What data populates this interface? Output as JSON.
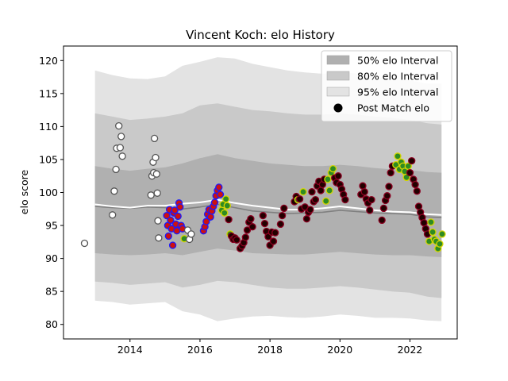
{
  "chart_data": {
    "type": "scatter",
    "title": "Vincent Koch: elo History",
    "xlabel": "",
    "ylabel": "elo score",
    "xlim": [
      2012.1,
      2023.35
    ],
    "ylim": [
      77.8,
      122.2
    ],
    "xticks": [
      2014,
      2016,
      2018,
      2020,
      2022
    ],
    "xtick_labels": [
      "2014",
      "2016",
      "2018",
      "2020",
      "2022"
    ],
    "yticks": [
      80,
      85,
      90,
      95,
      100,
      105,
      110,
      115,
      120
    ],
    "ytick_labels": [
      "80",
      "85",
      "90",
      "95",
      "100",
      "105",
      "110",
      "115",
      "120"
    ],
    "legend_position": "top-right",
    "legend": [
      {
        "label": "50% elo Interval",
        "color": "#b0b0b0"
      },
      {
        "label": "80% elo Interval",
        "color": "#c9c9c9"
      },
      {
        "label": "95% elo Interval",
        "color": "#e3e3e3"
      },
      {
        "label": "Post Match elo",
        "color": "#000000"
      }
    ],
    "bands": {
      "x": [
        2013.0,
        2013.5,
        2014.0,
        2014.5,
        2015.0,
        2015.5,
        2016.0,
        2016.5,
        2017.0,
        2017.5,
        2018.0,
        2018.5,
        2019.0,
        2019.5,
        2020.0,
        2020.5,
        2021.0,
        2021.5,
        2022.0,
        2022.5,
        2022.9
      ],
      "p95_high": [
        118.5,
        117.8,
        117.3,
        117.2,
        117.6,
        119.2,
        119.8,
        120.5,
        120.3,
        119.5,
        119.0,
        118.5,
        118.2,
        118.0,
        118.3,
        118.0,
        117.5,
        117.2,
        117.0,
        116.5,
        116.5
      ],
      "p80_high": [
        112.0,
        111.5,
        111.0,
        111.2,
        111.5,
        112.0,
        113.2,
        113.5,
        113.0,
        112.5,
        112.3,
        112.0,
        111.8,
        111.8,
        112.0,
        111.8,
        111.5,
        111.3,
        111.0,
        110.5,
        110.3
      ],
      "p50_high": [
        104.0,
        103.6,
        103.3,
        103.6,
        103.8,
        104.4,
        105.2,
        105.8,
        105.2,
        104.8,
        104.4,
        104.2,
        104.0,
        104.0,
        104.2,
        104.0,
        103.7,
        103.5,
        103.4,
        103.1,
        103.0
      ],
      "p50_low": [
        90.8,
        90.6,
        90.5,
        90.6,
        90.8,
        90.5,
        91.0,
        91.5,
        91.2,
        90.8,
        90.7,
        90.6,
        90.6,
        90.8,
        91.0,
        90.8,
        90.6,
        90.5,
        90.5,
        90.3,
        90.2
      ],
      "p80_low": [
        86.5,
        86.3,
        86.0,
        86.2,
        86.4,
        85.6,
        86.0,
        86.6,
        86.4,
        86.0,
        85.6,
        85.4,
        85.4,
        85.6,
        85.8,
        85.6,
        85.3,
        85.0,
        84.8,
        84.2,
        84.0
      ],
      "p95_low": [
        83.6,
        83.4,
        83.0,
        83.2,
        83.4,
        82.0,
        81.5,
        80.5,
        80.9,
        81.2,
        81.3,
        81.1,
        81.0,
        81.2,
        81.5,
        81.3,
        81.0,
        81.0,
        80.9,
        80.6,
        80.5
      ]
    },
    "median_line": {
      "x": [
        2013.0,
        2013.5,
        2014.0,
        2014.5,
        2015.0,
        2015.5,
        2016.0,
        2016.5,
        2017.0,
        2017.5,
        2018.0,
        2018.5,
        2019.0,
        2019.5,
        2020.0,
        2020.5,
        2021.0,
        2021.5,
        2022.0,
        2022.5,
        2022.9
      ],
      "y": [
        97.9,
        97.7,
        97.6,
        97.8,
        97.7,
        97.5,
        97.8,
        98.2,
        97.7,
        97.2,
        97.0,
        96.8,
        96.9,
        97.0,
        97.3,
        97.1,
        96.9,
        96.8,
        96.7,
        96.3,
        96.2
      ]
    },
    "mean_line": {
      "x": [
        2013.0,
        2013.5,
        2014.0,
        2014.5,
        2015.0,
        2015.5,
        2016.0,
        2016.5,
        2017.0,
        2017.5,
        2018.0,
        2018.5,
        2019.0,
        2019.5,
        2020.0,
        2020.5,
        2021.0,
        2021.5,
        2022.0,
        2022.5,
        2022.9
      ],
      "y": [
        98.2,
        97.9,
        97.7,
        98.0,
        98.0,
        98.3,
        98.5,
        98.9,
        98.4,
        98.0,
        97.7,
        97.4,
        97.4,
        97.6,
        97.9,
        97.6,
        97.3,
        97.1,
        97.0,
        96.7,
        96.6
      ]
    },
    "point_styles": {
      "white": {
        "fill": "#ffffff",
        "stroke": "#555555"
      },
      "blue": {
        "fill": "#cc1111",
        "stroke": "#1a1aff"
      },
      "green": {
        "fill": "#2e8b22",
        "stroke": "#d6d600"
      },
      "black": {
        "fill": "#220000",
        "stroke": "#8a0020"
      }
    },
    "points": [
      {
        "x": 2012.7,
        "y": 92.3,
        "style": "white"
      },
      {
        "x": 2013.5,
        "y": 96.6,
        "style": "white"
      },
      {
        "x": 2013.55,
        "y": 100.2,
        "style": "white"
      },
      {
        "x": 2013.6,
        "y": 103.5,
        "style": "white"
      },
      {
        "x": 2013.62,
        "y": 106.7,
        "style": "white"
      },
      {
        "x": 2013.68,
        "y": 110.1,
        "style": "white"
      },
      {
        "x": 2013.72,
        "y": 106.8,
        "style": "white"
      },
      {
        "x": 2013.75,
        "y": 108.5,
        "style": "white"
      },
      {
        "x": 2013.78,
        "y": 105.5,
        "style": "white"
      },
      {
        "x": 2014.6,
        "y": 99.6,
        "style": "white"
      },
      {
        "x": 2014.63,
        "y": 102.5,
        "style": "white"
      },
      {
        "x": 2014.66,
        "y": 104.6,
        "style": "white"
      },
      {
        "x": 2014.68,
        "y": 103.0,
        "style": "white"
      },
      {
        "x": 2014.7,
        "y": 108.2,
        "style": "white"
      },
      {
        "x": 2014.73,
        "y": 105.3,
        "style": "white"
      },
      {
        "x": 2014.76,
        "y": 102.8,
        "style": "white"
      },
      {
        "x": 2014.78,
        "y": 99.9,
        "style": "white"
      },
      {
        "x": 2014.8,
        "y": 95.7,
        "style": "white"
      },
      {
        "x": 2014.82,
        "y": 93.1,
        "style": "white"
      },
      {
        "x": 2015.05,
        "y": 96.5,
        "style": "blue"
      },
      {
        "x": 2015.08,
        "y": 95.0,
        "style": "blue"
      },
      {
        "x": 2015.1,
        "y": 93.4,
        "style": "blue"
      },
      {
        "x": 2015.13,
        "y": 97.4,
        "style": "blue"
      },
      {
        "x": 2015.16,
        "y": 95.8,
        "style": "blue"
      },
      {
        "x": 2015.19,
        "y": 94.5,
        "style": "blue"
      },
      {
        "x": 2015.22,
        "y": 92.0,
        "style": "blue"
      },
      {
        "x": 2015.25,
        "y": 96.9,
        "style": "blue"
      },
      {
        "x": 2015.28,
        "y": 97.3,
        "style": "blue"
      },
      {
        "x": 2015.31,
        "y": 95.2,
        "style": "blue"
      },
      {
        "x": 2015.34,
        "y": 94.2,
        "style": "blue"
      },
      {
        "x": 2015.37,
        "y": 96.4,
        "style": "blue"
      },
      {
        "x": 2015.4,
        "y": 98.4,
        "style": "blue"
      },
      {
        "x": 2015.43,
        "y": 97.8,
        "style": "blue"
      },
      {
        "x": 2015.46,
        "y": 95.0,
        "style": "blue"
      },
      {
        "x": 2015.5,
        "y": 94.5,
        "style": "blue"
      },
      {
        "x": 2015.55,
        "y": 93.0,
        "style": "green"
      },
      {
        "x": 2015.65,
        "y": 94.3,
        "style": "white"
      },
      {
        "x": 2015.7,
        "y": 92.9,
        "style": "white"
      },
      {
        "x": 2015.75,
        "y": 93.7,
        "style": "white"
      },
      {
        "x": 2016.1,
        "y": 94.2,
        "style": "blue"
      },
      {
        "x": 2016.14,
        "y": 94.8,
        "style": "blue"
      },
      {
        "x": 2016.18,
        "y": 95.6,
        "style": "blue"
      },
      {
        "x": 2016.22,
        "y": 96.7,
        "style": "blue"
      },
      {
        "x": 2016.26,
        "y": 97.4,
        "style": "blue"
      },
      {
        "x": 2016.3,
        "y": 96.3,
        "style": "blue"
      },
      {
        "x": 2016.34,
        "y": 97.2,
        "style": "blue"
      },
      {
        "x": 2016.38,
        "y": 97.9,
        "style": "blue"
      },
      {
        "x": 2016.42,
        "y": 98.5,
        "style": "blue"
      },
      {
        "x": 2016.46,
        "y": 99.5,
        "style": "blue"
      },
      {
        "x": 2016.5,
        "y": 100.3,
        "style": "blue"
      },
      {
        "x": 2016.54,
        "y": 100.8,
        "style": "blue"
      },
      {
        "x": 2016.58,
        "y": 99.7,
        "style": "blue"
      },
      {
        "x": 2016.62,
        "y": 97.3,
        "style": "green"
      },
      {
        "x": 2016.66,
        "y": 98.2,
        "style": "green"
      },
      {
        "x": 2016.7,
        "y": 96.9,
        "style": "green"
      },
      {
        "x": 2016.74,
        "y": 99.0,
        "style": "green"
      },
      {
        "x": 2016.78,
        "y": 98.0,
        "style": "green"
      },
      {
        "x": 2016.82,
        "y": 95.9,
        "style": "black"
      },
      {
        "x": 2016.86,
        "y": 93.7,
        "style": "green"
      },
      {
        "x": 2016.9,
        "y": 93.4,
        "style": "black"
      },
      {
        "x": 2016.95,
        "y": 92.9,
        "style": "black"
      },
      {
        "x": 2017.0,
        "y": 93.1,
        "style": "black"
      },
      {
        "x": 2017.05,
        "y": 92.8,
        "style": "black"
      },
      {
        "x": 2017.15,
        "y": 91.5,
        "style": "black"
      },
      {
        "x": 2017.2,
        "y": 91.9,
        "style": "black"
      },
      {
        "x": 2017.25,
        "y": 92.4,
        "style": "black"
      },
      {
        "x": 2017.3,
        "y": 93.2,
        "style": "black"
      },
      {
        "x": 2017.35,
        "y": 94.3,
        "style": "black"
      },
      {
        "x": 2017.4,
        "y": 95.5,
        "style": "black"
      },
      {
        "x": 2017.45,
        "y": 96.0,
        "style": "black"
      },
      {
        "x": 2017.5,
        "y": 94.8,
        "style": "black"
      },
      {
        "x": 2017.8,
        "y": 96.5,
        "style": "black"
      },
      {
        "x": 2017.85,
        "y": 95.3,
        "style": "black"
      },
      {
        "x": 2017.9,
        "y": 94.1,
        "style": "black"
      },
      {
        "x": 2017.95,
        "y": 93.3,
        "style": "black"
      },
      {
        "x": 2018.0,
        "y": 92.0,
        "style": "black"
      },
      {
        "x": 2018.05,
        "y": 94.0,
        "style": "black"
      },
      {
        "x": 2018.1,
        "y": 92.6,
        "style": "black"
      },
      {
        "x": 2018.15,
        "y": 93.9,
        "style": "black"
      },
      {
        "x": 2018.3,
        "y": 95.2,
        "style": "black"
      },
      {
        "x": 2018.35,
        "y": 96.5,
        "style": "black"
      },
      {
        "x": 2018.4,
        "y": 97.6,
        "style": "black"
      },
      {
        "x": 2018.7,
        "y": 98.6,
        "style": "black"
      },
      {
        "x": 2018.75,
        "y": 99.4,
        "style": "black"
      },
      {
        "x": 2018.8,
        "y": 98.9,
        "style": "green"
      },
      {
        "x": 2018.85,
        "y": 99.0,
        "style": "black"
      },
      {
        "x": 2018.9,
        "y": 97.5,
        "style": "black"
      },
      {
        "x": 2018.95,
        "y": 100.1,
        "style": "green"
      },
      {
        "x": 2019.0,
        "y": 97.8,
        "style": "black"
      },
      {
        "x": 2019.05,
        "y": 96.0,
        "style": "black"
      },
      {
        "x": 2019.1,
        "y": 97.0,
        "style": "black"
      },
      {
        "x": 2019.15,
        "y": 97.4,
        "style": "black"
      },
      {
        "x": 2019.2,
        "y": 100.1,
        "style": "black"
      },
      {
        "x": 2019.25,
        "y": 98.6,
        "style": "black"
      },
      {
        "x": 2019.3,
        "y": 98.9,
        "style": "black"
      },
      {
        "x": 2019.35,
        "y": 101.0,
        "style": "black"
      },
      {
        "x": 2019.4,
        "y": 101.7,
        "style": "black"
      },
      {
        "x": 2019.45,
        "y": 100.3,
        "style": "black"
      },
      {
        "x": 2019.5,
        "y": 101.2,
        "style": "black"
      },
      {
        "x": 2019.55,
        "y": 102.0,
        "style": "black"
      },
      {
        "x": 2019.6,
        "y": 98.7,
        "style": "green"
      },
      {
        "x": 2019.65,
        "y": 102.0,
        "style": "green"
      },
      {
        "x": 2019.7,
        "y": 100.3,
        "style": "green"
      },
      {
        "x": 2019.75,
        "y": 103.0,
        "style": "green"
      },
      {
        "x": 2019.8,
        "y": 103.6,
        "style": "green"
      },
      {
        "x": 2019.85,
        "y": 102.2,
        "style": "black"
      },
      {
        "x": 2019.9,
        "y": 101.5,
        "style": "black"
      },
      {
        "x": 2019.95,
        "y": 102.5,
        "style": "black"
      },
      {
        "x": 2020.0,
        "y": 101.2,
        "style": "black"
      },
      {
        "x": 2020.05,
        "y": 100.5,
        "style": "black"
      },
      {
        "x": 2020.1,
        "y": 99.7,
        "style": "black"
      },
      {
        "x": 2020.15,
        "y": 98.9,
        "style": "black"
      },
      {
        "x": 2020.6,
        "y": 99.7,
        "style": "black"
      },
      {
        "x": 2020.65,
        "y": 101.0,
        "style": "black"
      },
      {
        "x": 2020.7,
        "y": 100.1,
        "style": "black"
      },
      {
        "x": 2020.75,
        "y": 99.0,
        "style": "black"
      },
      {
        "x": 2020.8,
        "y": 98.4,
        "style": "black"
      },
      {
        "x": 2020.85,
        "y": 97.3,
        "style": "black"
      },
      {
        "x": 2020.9,
        "y": 98.9,
        "style": "black"
      },
      {
        "x": 2021.2,
        "y": 95.8,
        "style": "black"
      },
      {
        "x": 2021.25,
        "y": 97.6,
        "style": "black"
      },
      {
        "x": 2021.3,
        "y": 98.8,
        "style": "black"
      },
      {
        "x": 2021.35,
        "y": 99.5,
        "style": "black"
      },
      {
        "x": 2021.4,
        "y": 100.9,
        "style": "black"
      },
      {
        "x": 2021.45,
        "y": 103.0,
        "style": "black"
      },
      {
        "x": 2021.5,
        "y": 104.0,
        "style": "black"
      },
      {
        "x": 2021.6,
        "y": 104.2,
        "style": "green"
      },
      {
        "x": 2021.65,
        "y": 105.5,
        "style": "green"
      },
      {
        "x": 2021.7,
        "y": 103.5,
        "style": "green"
      },
      {
        "x": 2021.75,
        "y": 104.6,
        "style": "green"
      },
      {
        "x": 2021.8,
        "y": 104.0,
        "style": "green"
      },
      {
        "x": 2021.85,
        "y": 103.2,
        "style": "green"
      },
      {
        "x": 2021.9,
        "y": 102.3,
        "style": "green"
      },
      {
        "x": 2021.95,
        "y": 104.0,
        "style": "green"
      },
      {
        "x": 2022.0,
        "y": 103.0,
        "style": "black"
      },
      {
        "x": 2022.05,
        "y": 104.8,
        "style": "black"
      },
      {
        "x": 2022.1,
        "y": 102.0,
        "style": "black"
      },
      {
        "x": 2022.15,
        "y": 101.2,
        "style": "black"
      },
      {
        "x": 2022.2,
        "y": 100.2,
        "style": "black"
      },
      {
        "x": 2022.25,
        "y": 97.9,
        "style": "black"
      },
      {
        "x": 2022.3,
        "y": 97.0,
        "style": "black"
      },
      {
        "x": 2022.35,
        "y": 96.2,
        "style": "black"
      },
      {
        "x": 2022.4,
        "y": 95.4,
        "style": "black"
      },
      {
        "x": 2022.45,
        "y": 94.5,
        "style": "black"
      },
      {
        "x": 2022.5,
        "y": 93.7,
        "style": "black"
      },
      {
        "x": 2022.55,
        "y": 92.6,
        "style": "green"
      },
      {
        "x": 2022.6,
        "y": 95.5,
        "style": "green"
      },
      {
        "x": 2022.65,
        "y": 94.0,
        "style": "green"
      },
      {
        "x": 2022.7,
        "y": 92.9,
        "style": "green"
      },
      {
        "x": 2022.75,
        "y": 92.6,
        "style": "green"
      },
      {
        "x": 2022.8,
        "y": 91.5,
        "style": "green"
      },
      {
        "x": 2022.85,
        "y": 92.2,
        "style": "green"
      },
      {
        "x": 2022.92,
        "y": 93.7,
        "style": "green"
      }
    ]
  }
}
